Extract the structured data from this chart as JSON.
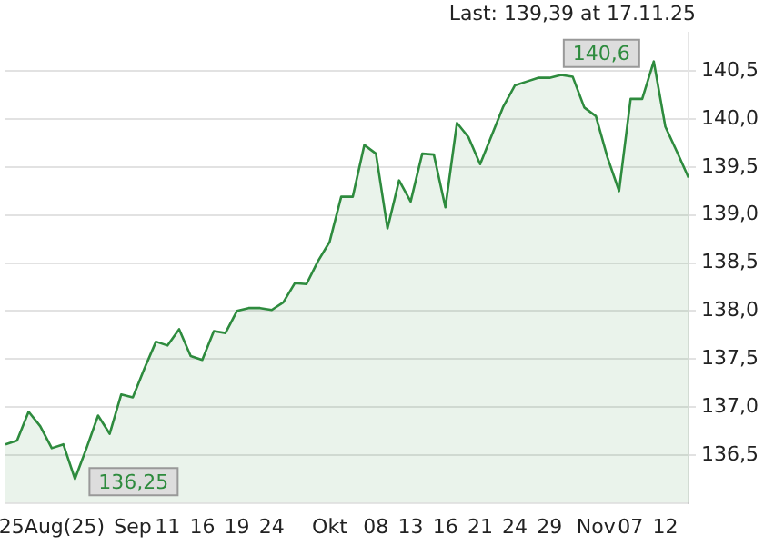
{
  "chart_data": {
    "type": "area",
    "categories": [
      null,
      null,
      null,
      null,
      "25Aug(25)",
      null,
      null,
      null,
      null,
      null,
      null,
      "Sep",
      null,
      null,
      "11",
      null,
      null,
      "16",
      null,
      null,
      "19",
      null,
      null,
      "24",
      null,
      null,
      null,
      null,
      "Okt",
      null,
      null,
      null,
      "08",
      null,
      null,
      "13",
      null,
      null,
      "16",
      null,
      null,
      "21",
      null,
      null,
      "24",
      null,
      null,
      "29",
      null,
      null,
      null,
      "Nov",
      null,
      null,
      "07",
      null,
      null,
      "12",
      null,
      null
    ],
    "series": [
      {
        "color": "#2e8b3e",
        "values": [
          136.61,
          136.65,
          136.95,
          136.8,
          136.57,
          136.61,
          136.25,
          136.57,
          136.91,
          136.72,
          137.13,
          137.1,
          137.4,
          137.68,
          137.64,
          137.81,
          137.53,
          137.49,
          137.79,
          137.77,
          138.0,
          138.03,
          138.03,
          138.01,
          138.09,
          138.29,
          138.28,
          138.52,
          138.72,
          139.19,
          139.19,
          139.73,
          139.64,
          138.86,
          139.36,
          139.14,
          139.64,
          139.63,
          139.08,
          139.96,
          139.81,
          139.53,
          139.83,
          140.13,
          140.35,
          140.39,
          140.43,
          140.43,
          140.46,
          140.44,
          140.12,
          140.03,
          139.6,
          139.25,
          140.21,
          140.21,
          140.6,
          139.92,
          139.66,
          139.39
        ]
      }
    ],
    "ylim": [
      136.0,
      140.9
    ],
    "yticks": [
      {
        "value": 136.5,
        "label": "136,5"
      },
      {
        "value": 137,
        "label": "137,0"
      },
      {
        "value": 137.5,
        "label": "137,5"
      },
      {
        "value": 138,
        "label": "138,0"
      },
      {
        "value": 138.5,
        "label": "138,5"
      },
      {
        "value": 139,
        "label": "139,0"
      },
      {
        "value": 139.5,
        "label": "139,5"
      },
      {
        "value": 140,
        "label": "140,0"
      },
      {
        "value": 140.5,
        "label": "140,5"
      }
    ],
    "grid": "y",
    "annotations": [
      "Last: 139,39 at 17.11.25",
      "140,6",
      "136,25"
    ]
  }
}
